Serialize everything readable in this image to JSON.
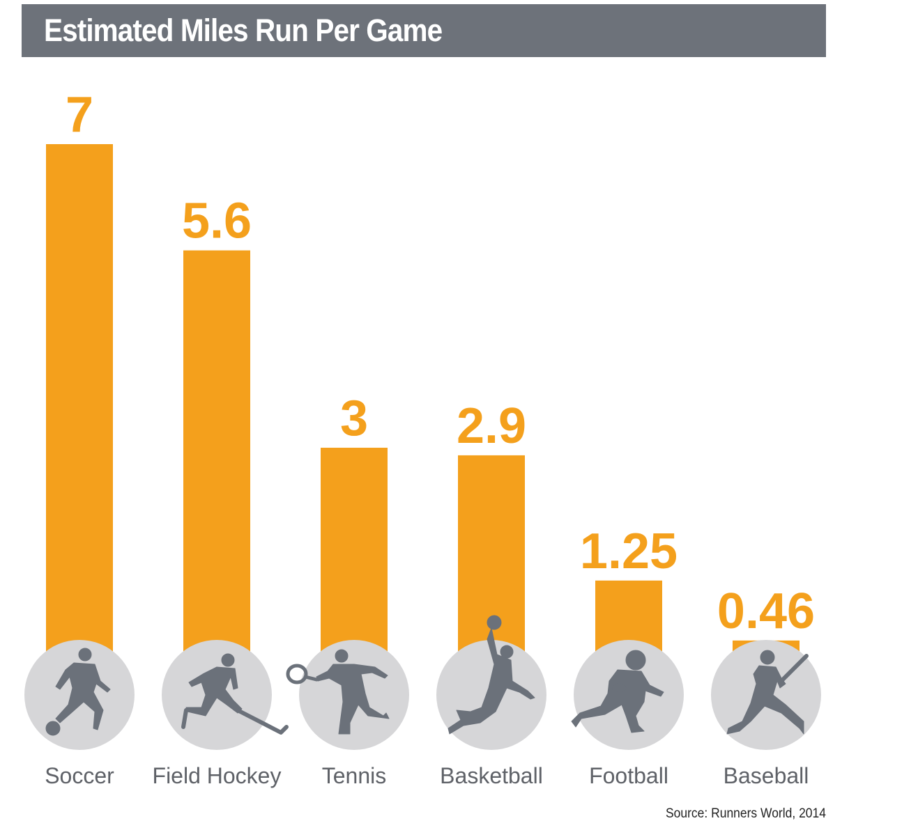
{
  "header": {
    "title": "Estimated Miles Run Per Game"
  },
  "chart_data": {
    "type": "bar",
    "title": "Estimated Miles Run Per Game",
    "categories": [
      "Soccer",
      "Field Hockey",
      "Tennis",
      "Basketball",
      "Football",
      "Baseball"
    ],
    "values": [
      7,
      5.6,
      3,
      2.9,
      1.25,
      0.46
    ],
    "value_labels": [
      "7",
      "5.6",
      "3",
      "2.9",
      "1.25",
      "0.46"
    ],
    "icons": [
      "soccer-player-icon",
      "field-hockey-player-icon",
      "tennis-player-icon",
      "basketball-player-icon",
      "football-player-icon",
      "baseball-player-icon"
    ],
    "grid": false,
    "legend": "none",
    "colors": {
      "bar": "#f4a01c",
      "title_bar": "#6d727a",
      "icon_circle": "#d6d6d8",
      "icon": "#6b717a"
    }
  },
  "footer": {
    "source": "Source: Runners World, 2014"
  }
}
